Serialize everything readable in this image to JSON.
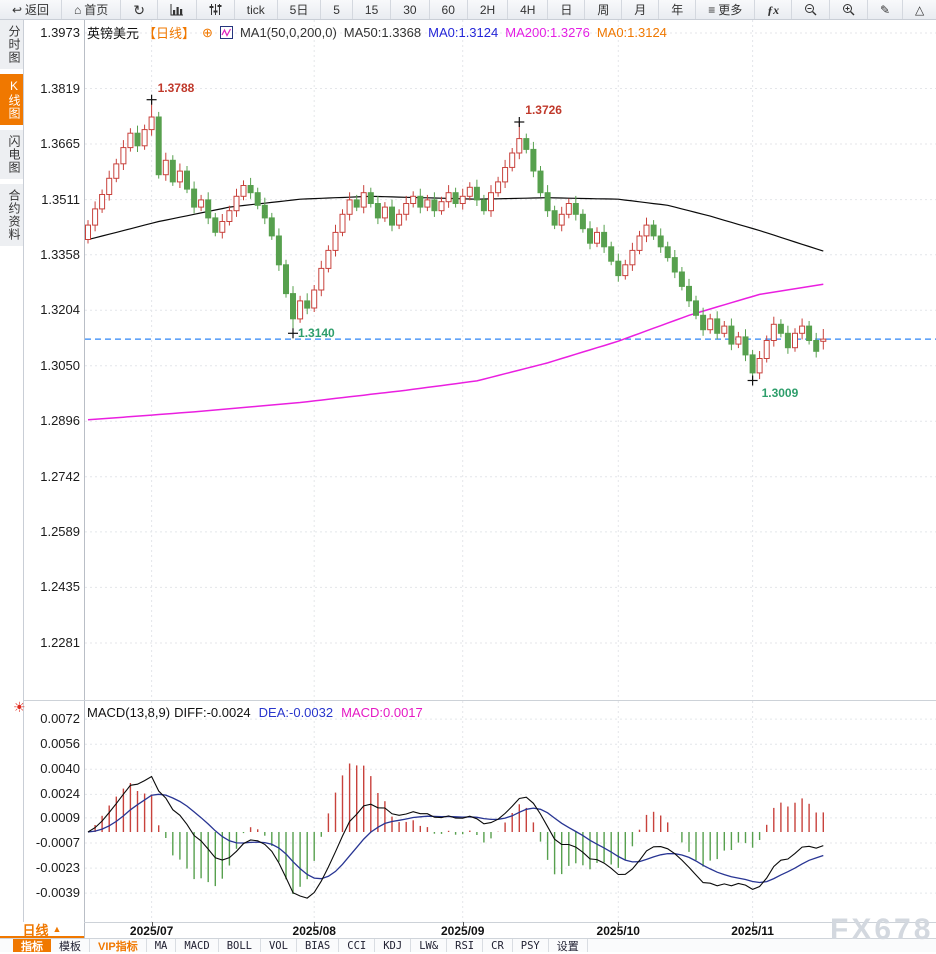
{
  "toolbar": {
    "items": [
      {
        "name": "back-button",
        "icon": "back",
        "label": "返回"
      },
      {
        "name": "home-button",
        "icon": "home",
        "label": "首页"
      },
      {
        "name": "refresh-button",
        "icon": "refresh",
        "label": ""
      },
      {
        "name": "chart-type-button",
        "icon": "bars",
        "label": ""
      },
      {
        "name": "indicator-panel-button",
        "icon": "sliders",
        "label": ""
      },
      {
        "name": "tf-tick-button",
        "icon": "",
        "label": "tick"
      },
      {
        "name": "tf-5d-button",
        "icon": "",
        "label": "5日"
      },
      {
        "name": "tf-5-button",
        "icon": "",
        "label": "5"
      },
      {
        "name": "tf-15-button",
        "icon": "",
        "label": "15"
      },
      {
        "name": "tf-30-button",
        "icon": "",
        "label": "30"
      },
      {
        "name": "tf-60-button",
        "icon": "",
        "label": "60"
      },
      {
        "name": "tf-2h-button",
        "icon": "",
        "label": "2H"
      },
      {
        "name": "tf-4h-button",
        "icon": "",
        "label": "4H"
      },
      {
        "name": "tf-day-button",
        "icon": "",
        "label": "日"
      },
      {
        "name": "tf-week-button",
        "icon": "",
        "label": "周"
      },
      {
        "name": "tf-month-button",
        "icon": "",
        "label": "月"
      },
      {
        "name": "tf-year-button",
        "icon": "",
        "label": "年"
      },
      {
        "name": "more-button",
        "icon": "more",
        "label": "更多"
      },
      {
        "name": "fx-button",
        "icon": "fx",
        "label": ""
      },
      {
        "name": "zoom-out-button",
        "icon": "zoom-out",
        "label": ""
      },
      {
        "name": "zoom-in-button",
        "icon": "zoom-in",
        "label": ""
      },
      {
        "name": "draw-button",
        "icon": "pencil",
        "label": ""
      },
      {
        "name": "shapes-button",
        "icon": "triangle",
        "label": ""
      }
    ]
  },
  "sidebar": {
    "tabs": [
      {
        "label": "分时图",
        "active": false
      },
      {
        "label": "K线图",
        "active": true
      },
      {
        "label": "闪电图",
        "active": false
      },
      {
        "label": "合约资料",
        "active": false
      }
    ]
  },
  "header": {
    "symbol": "英镑美元",
    "period": "【日线】",
    "add_icon": "⊕",
    "ma_settings": "MA1(50,0,200,0)",
    "ma50": "MA50:1.3368",
    "ma0_blue": "MA0:1.3124",
    "ma200": "MA200:1.3276",
    "ma0_orange": "MA0:1.3124"
  },
  "macd_header": {
    "name": "MACD(13,8,9)",
    "diff": "DIFF:-0.0024",
    "dea": "DEA:-0.0032",
    "macd": "MACD:0.0017"
  },
  "footer": {
    "period_label": "日线",
    "period_arrow": "▲",
    "tabs": [
      {
        "label": "指标",
        "active": true
      },
      {
        "label": "模板"
      },
      {
        "label": "VIP指标",
        "accent": true
      },
      {
        "label": "MA"
      },
      {
        "label": "MACD"
      },
      {
        "label": "BOLL"
      },
      {
        "label": "VOL"
      },
      {
        "label": "BIAS"
      },
      {
        "label": "CCI"
      },
      {
        "label": "KDJ"
      },
      {
        "label": "LW&"
      },
      {
        "label": "RSI"
      },
      {
        "label": "CR"
      },
      {
        "label": "PSY"
      },
      {
        "label": "设置"
      }
    ]
  },
  "watermark": {
    "text": "FX678"
  },
  "colors": {
    "up": "#c8423c",
    "down": "#57a04e",
    "ma50": "#0a0a0a",
    "ma200": "#ea1fe0",
    "price_line": "#2f86f6",
    "accent": "#f07800",
    "grid": "#e4e6ea",
    "diff_line": "#0a0a0a",
    "dea_line": "#283593",
    "hist_pos": "#c8423c",
    "hist_neg": "#57a04e",
    "label_high": "#c0392b",
    "label_low": "#2e9e6b",
    "ma_blue_text": "#2426d8",
    "ma_magenta_text": "#e41ee4",
    "macd_magenta_text": "#e519c4",
    "dea_blue_text": "#2836cc"
  },
  "chart_data": {
    "type": "candlestick",
    "title": "英镑美元 日线",
    "y_axis_labels": [
      "1.3973",
      "1.3819",
      "1.3665",
      "1.3511",
      "1.3358",
      "1.3204",
      "1.3050",
      "1.2896",
      "1.2742",
      "1.2589",
      "1.2435",
      "1.2281"
    ],
    "x_axis_labels": [
      "2025/07",
      "2025/08",
      "2025/09",
      "2025/10",
      "2025/11"
    ],
    "month_start_idx": [
      9,
      32,
      53,
      75,
      94
    ],
    "current_price": 1.3124,
    "annotations": [
      {
        "idx": 9,
        "price": 1.3788,
        "text": "1.3788",
        "kind": "high"
      },
      {
        "idx": 61,
        "price": 1.3726,
        "text": "1.3726",
        "kind": "high"
      },
      {
        "idx": 29,
        "price": 1.314,
        "text": "1.3140",
        "kind": "low"
      },
      {
        "idx": 94,
        "price": 1.3009,
        "text": "1.3009",
        "kind": "low2"
      }
    ],
    "candles": [
      [
        1.34,
        1.3454,
        1.3389,
        1.344
      ],
      [
        1.344,
        1.3506,
        1.3423,
        1.3485
      ],
      [
        1.3485,
        1.3539,
        1.3474,
        1.3525
      ],
      [
        1.3525,
        1.3591,
        1.3508,
        1.357
      ],
      [
        1.357,
        1.3624,
        1.3559,
        1.361
      ],
      [
        1.361,
        1.3676,
        1.3593,
        1.3655
      ],
      [
        1.3655,
        1.3709,
        1.3644,
        1.3695
      ],
      [
        1.3695,
        1.3716,
        1.3643,
        1.366
      ],
      [
        1.366,
        1.3719,
        1.3649,
        1.3705
      ],
      [
        1.3705,
        1.3788,
        1.3688,
        1.374
      ],
      [
        1.374,
        1.3754,
        1.3569,
        1.358
      ],
      [
        1.358,
        1.3641,
        1.3563,
        1.362
      ],
      [
        1.362,
        1.3634,
        1.3549,
        1.356
      ],
      [
        1.356,
        1.3611,
        1.3543,
        1.359
      ],
      [
        1.359,
        1.3604,
        1.3529,
        1.354
      ],
      [
        1.354,
        1.3561,
        1.3473,
        1.349
      ],
      [
        1.349,
        1.3524,
        1.3479,
        1.351
      ],
      [
        1.351,
        1.3531,
        1.3443,
        1.346
      ],
      [
        1.346,
        1.3474,
        1.3409,
        1.342
      ],
      [
        1.342,
        1.3471,
        1.3403,
        1.345
      ],
      [
        1.345,
        1.3494,
        1.3439,
        1.348
      ],
      [
        1.348,
        1.3541,
        1.3463,
        1.352
      ],
      [
        1.352,
        1.3564,
        1.3509,
        1.355
      ],
      [
        1.355,
        1.3571,
        1.3513,
        1.353
      ],
      [
        1.353,
        1.3544,
        1.3484,
        1.3495
      ],
      [
        1.3495,
        1.3516,
        1.3443,
        1.346
      ],
      [
        1.346,
        1.3474,
        1.3399,
        1.341
      ],
      [
        1.341,
        1.3431,
        1.3313,
        1.333
      ],
      [
        1.333,
        1.3344,
        1.3239,
        1.325
      ],
      [
        1.325,
        1.3271,
        1.314,
        1.318
      ],
      [
        1.318,
        1.3244,
        1.3169,
        1.323
      ],
      [
        1.323,
        1.3251,
        1.3193,
        1.321
      ],
      [
        1.321,
        1.3274,
        1.3199,
        1.326
      ],
      [
        1.326,
        1.3341,
        1.3243,
        1.332
      ],
      [
        1.332,
        1.3384,
        1.3309,
        1.337
      ],
      [
        1.337,
        1.3441,
        1.3353,
        1.342
      ],
      [
        1.342,
        1.3484,
        1.3409,
        1.347
      ],
      [
        1.347,
        1.3531,
        1.3453,
        1.351
      ],
      [
        1.351,
        1.3524,
        1.3479,
        1.349
      ],
      [
        1.349,
        1.3551,
        1.3473,
        1.353
      ],
      [
        1.353,
        1.3544,
        1.3489,
        1.35
      ],
      [
        1.35,
        1.3521,
        1.3443,
        1.346
      ],
      [
        1.346,
        1.3504,
        1.3449,
        1.349
      ],
      [
        1.349,
        1.3511,
        1.3423,
        1.344
      ],
      [
        1.344,
        1.3484,
        1.3429,
        1.347
      ],
      [
        1.347,
        1.3521,
        1.3453,
        1.35
      ],
      [
        1.35,
        1.3534,
        1.3489,
        1.352
      ],
      [
        1.352,
        1.3541,
        1.3473,
        1.349
      ],
      [
        1.349,
        1.3524,
        1.3479,
        1.351
      ],
      [
        1.351,
        1.3531,
        1.3463,
        1.348
      ],
      [
        1.348,
        1.3519,
        1.3469,
        1.3505
      ],
      [
        1.3505,
        1.3551,
        1.3488,
        1.353
      ],
      [
        1.353,
        1.3544,
        1.3489,
        1.35
      ],
      [
        1.35,
        1.3541,
        1.3483,
        1.352
      ],
      [
        1.352,
        1.3559,
        1.3509,
        1.3545
      ],
      [
        1.3545,
        1.3566,
        1.3493,
        1.351
      ],
      [
        1.351,
        1.3524,
        1.3469,
        1.348
      ],
      [
        1.348,
        1.3551,
        1.3463,
        1.353
      ],
      [
        1.353,
        1.3574,
        1.3519,
        1.356
      ],
      [
        1.356,
        1.3621,
        1.3543,
        1.36
      ],
      [
        1.36,
        1.3654,
        1.3589,
        1.364
      ],
      [
        1.364,
        1.3726,
        1.3623,
        1.368
      ],
      [
        1.368,
        1.3694,
        1.3639,
        1.365
      ],
      [
        1.365,
        1.3671,
        1.3573,
        1.359
      ],
      [
        1.359,
        1.3604,
        1.3519,
        1.353
      ],
      [
        1.353,
        1.3551,
        1.3463,
        1.348
      ],
      [
        1.348,
        1.3494,
        1.3429,
        1.344
      ],
      [
        1.344,
        1.3491,
        1.3423,
        1.347
      ],
      [
        1.347,
        1.3514,
        1.3459,
        1.35
      ],
      [
        1.35,
        1.3521,
        1.3453,
        1.347
      ],
      [
        1.347,
        1.3484,
        1.3419,
        1.343
      ],
      [
        1.343,
        1.3451,
        1.3373,
        1.339
      ],
      [
        1.339,
        1.3434,
        1.3379,
        1.342
      ],
      [
        1.342,
        1.3441,
        1.3363,
        1.338
      ],
      [
        1.338,
        1.3394,
        1.3329,
        1.334
      ],
      [
        1.334,
        1.3361,
        1.3283,
        1.33
      ],
      [
        1.33,
        1.3344,
        1.3289,
        1.333
      ],
      [
        1.333,
        1.3391,
        1.3313,
        1.337
      ],
      [
        1.337,
        1.3424,
        1.3359,
        1.341
      ],
      [
        1.341,
        1.3461,
        1.3393,
        1.344
      ],
      [
        1.344,
        1.3454,
        1.3399,
        1.341
      ],
      [
        1.341,
        1.3431,
        1.3363,
        1.338
      ],
      [
        1.338,
        1.3394,
        1.3339,
        1.335
      ],
      [
        1.335,
        1.3371,
        1.3293,
        1.331
      ],
      [
        1.331,
        1.3324,
        1.3259,
        1.327
      ],
      [
        1.327,
        1.3291,
        1.3213,
        1.323
      ],
      [
        1.323,
        1.3244,
        1.3179,
        1.319
      ],
      [
        1.319,
        1.3211,
        1.3133,
        1.315
      ],
      [
        1.315,
        1.3194,
        1.3139,
        1.318
      ],
      [
        1.318,
        1.3201,
        1.3123,
        1.314
      ],
      [
        1.314,
        1.3174,
        1.3129,
        1.316
      ],
      [
        1.316,
        1.3181,
        1.3093,
        1.311
      ],
      [
        1.311,
        1.3144,
        1.3099,
        1.313
      ],
      [
        1.313,
        1.3151,
        1.3063,
        1.308
      ],
      [
        1.308,
        1.3094,
        1.3009,
        1.303
      ],
      [
        1.303,
        1.3091,
        1.3013,
        1.307
      ],
      [
        1.307,
        1.3134,
        1.3059,
        1.312
      ],
      [
        1.312,
        1.3186,
        1.3103,
        1.3165
      ],
      [
        1.3165,
        1.3179,
        1.3129,
        1.314
      ],
      [
        1.314,
        1.3161,
        1.3083,
        1.31
      ],
      [
        1.31,
        1.3154,
        1.3089,
        1.314
      ],
      [
        1.314,
        1.3181,
        1.3123,
        1.316
      ],
      [
        1.316,
        1.3174,
        1.3109,
        1.312
      ],
      [
        1.312,
        1.3141,
        1.3073,
        1.309
      ],
      [
        1.3118,
        1.3152,
        1.3095,
        1.3124
      ]
    ],
    "ma50_anchors": [
      [
        0,
        1.34
      ],
      [
        10,
        1.345
      ],
      [
        20,
        1.349
      ],
      [
        30,
        1.3512
      ],
      [
        40,
        1.352
      ],
      [
        55,
        1.3512
      ],
      [
        65,
        1.3516
      ],
      [
        75,
        1.3512
      ],
      [
        82,
        1.3495
      ],
      [
        88,
        1.3465
      ],
      [
        95,
        1.3425
      ],
      [
        104,
        1.3368
      ]
    ],
    "ma200_anchors": [
      [
        0,
        1.29
      ],
      [
        15,
        1.2922
      ],
      [
        30,
        1.2948
      ],
      [
        45,
        1.2982
      ],
      [
        55,
        1.3008
      ],
      [
        65,
        1.3058
      ],
      [
        75,
        1.3118
      ],
      [
        85,
        1.319
      ],
      [
        95,
        1.3248
      ],
      [
        104,
        1.3276
      ]
    ],
    "macd": {
      "params": [
        13,
        8,
        9
      ],
      "last_diff": -0.0024,
      "last_dea": -0.0032,
      "last_macd": 0.0017,
      "y_axis_labels": [
        "0.0072",
        "0.0056",
        "0.0040",
        "0.0024",
        "0.0009",
        "-0.0007",
        "-0.0023",
        "-0.0039"
      ]
    }
  }
}
